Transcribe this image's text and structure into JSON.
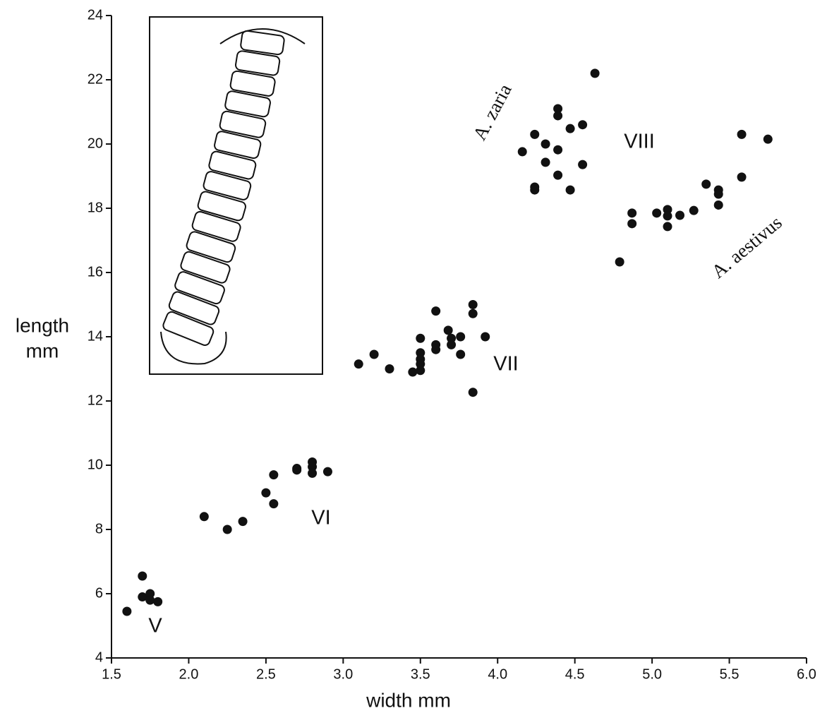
{
  "chart_data": {
    "type": "scatter",
    "xlabel": "width mm",
    "ylabel_lines": [
      "length",
      "mm"
    ],
    "xlim": [
      1.5,
      6.0
    ],
    "ylim": [
      4,
      24
    ],
    "xticks": [
      1.5,
      {
        "value": 2,
        "label": "2.0"
      },
      2.5,
      {
        "value": 3,
        "label": "3.0"
      },
      3.5,
      {
        "value": 4,
        "label": "4.0"
      },
      4.5,
      {
        "value": 5,
        "label": "5.0"
      },
      5.5,
      {
        "value": 6,
        "label": "6.0"
      }
    ],
    "yticks": [
      4,
      6,
      8,
      10,
      12,
      14,
      16,
      18,
      20,
      22,
      24
    ],
    "grid": false,
    "color": "#111111",
    "annotations": [
      "A. zaria",
      "VIII",
      "A. aestivus",
      "VII",
      "VI",
      "V"
    ],
    "x": [
      1.7,
      1.7,
      1.6,
      1.75,
      1.75,
      1.8,
      2.1,
      2.25,
      2.35,
      2.5,
      2.55,
      2.55,
      2.7,
      2.7,
      2.8,
      2.8,
      2.8,
      2.9,
      3.1,
      3.2,
      3.3,
      3.45,
      3.5,
      3.5,
      3.5,
      3.5,
      3.5,
      3.6,
      3.6,
      3.6,
      3.68,
      3.7,
      3.7,
      3.76,
      3.76,
      3.84,
      3.84,
      3.92,
      3.84,
      4.63,
      4.39,
      4.39,
      4.24,
      4.55,
      4.31,
      4.47,
      4.39,
      4.16,
      4.31,
      4.55,
      4.39,
      4.24,
      4.24,
      4.47,
      5.58,
      5.75,
      5.58,
      5.35,
      5.43,
      5.43,
      5.43,
      4.87,
      4.87,
      5.03,
      5.1,
      5.1,
      5.1,
      5.18,
      5.27,
      4.79
    ],
    "y": [
      6.55,
      5.9,
      5.45,
      6.0,
      5.8,
      5.75,
      8.4,
      8.0,
      8.25,
      9.14,
      8.8,
      9.7,
      9.9,
      9.85,
      10.1,
      9.95,
      9.75,
      9.8,
      13.15,
      13.45,
      13.0,
      12.9,
      13.95,
      13.5,
      13.3,
      13.15,
      12.95,
      14.8,
      13.75,
      13.6,
      14.2,
      13.95,
      13.75,
      14.0,
      13.45,
      15.0,
      14.72,
      14.0,
      12.27,
      22.2,
      21.1,
      20.88,
      20.3,
      20.6,
      20.0,
      20.48,
      19.82,
      19.76,
      19.43,
      19.36,
      19.03,
      18.66,
      18.57,
      18.57,
      20.3,
      20.15,
      18.97,
      18.75,
      18.57,
      18.44,
      18.1,
      17.85,
      17.52,
      17.85,
      17.96,
      17.76,
      17.43,
      17.78,
      17.93,
      16.33
    ]
  }
}
